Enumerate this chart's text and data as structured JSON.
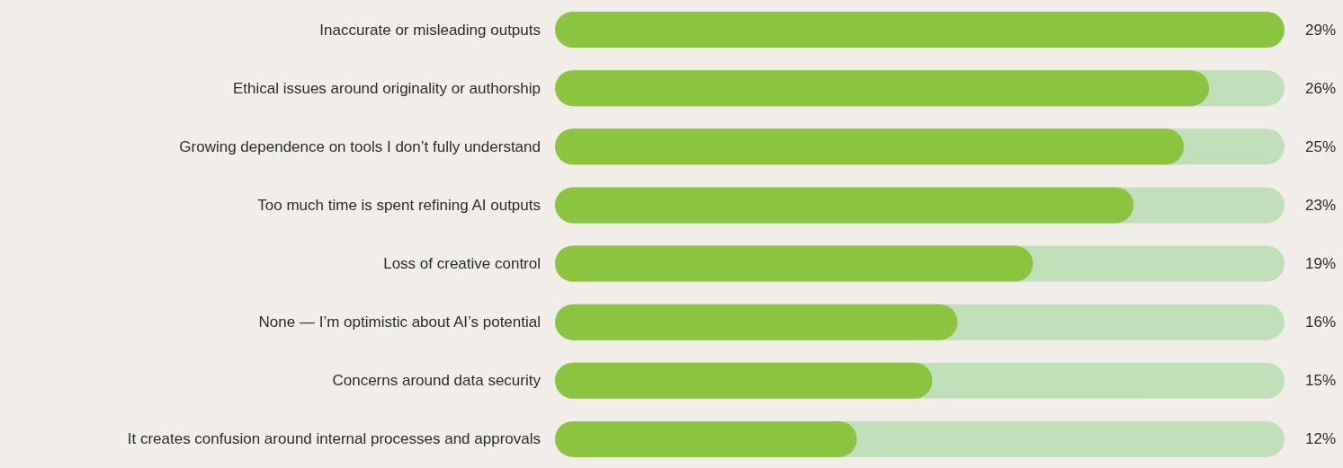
{
  "chart_data": {
    "type": "bar",
    "orientation": "horizontal",
    "categories": [
      "Inaccurate or misleading outputs",
      "Ethical issues around originality or authorship",
      "Growing dependence on tools I don’t fully understand",
      "Too much time is spent refining AI outputs",
      "Loss of creative control",
      "None — I’m optimistic about AI’s potential",
      "Concerns around data security",
      "It creates confusion around internal processes and approvals"
    ],
    "values": [
      29,
      26,
      25,
      23,
      19,
      16,
      15,
      12
    ],
    "value_labels": [
      "29%",
      "26%",
      "25%",
      "23%",
      "19%",
      "16%",
      "15%",
      "12%"
    ],
    "color": "#8bc53f",
    "grid": false,
    "legend": false
  }
}
